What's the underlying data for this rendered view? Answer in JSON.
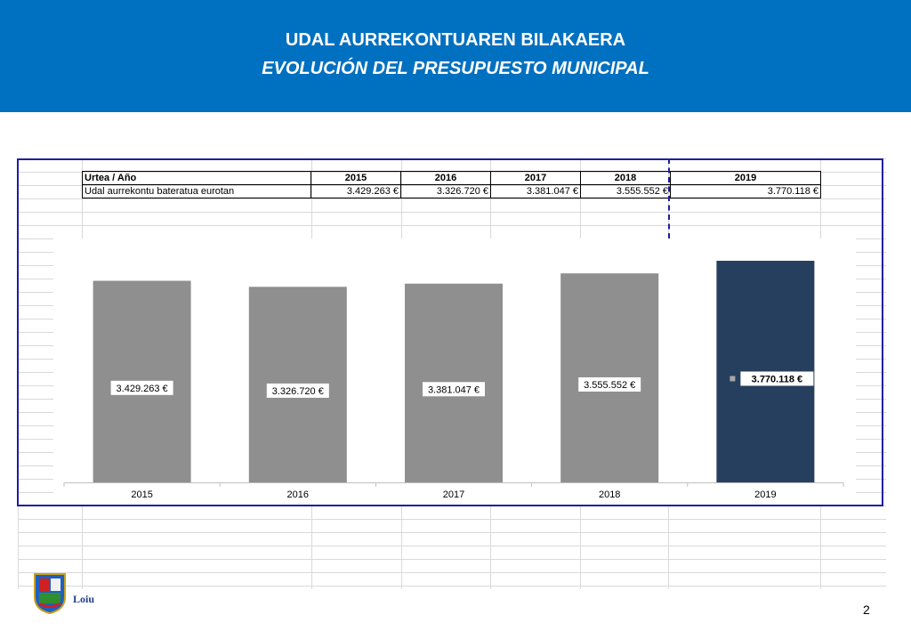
{
  "header": {
    "title": "UDAL AURREKONTUAREN BILAKAERA",
    "subtitle": "EVOLUCIÓN DEL PRESUPUESTO MUNICIPAL"
  },
  "table": {
    "header_label": "Urtea / Año",
    "row_label": "Udal aurrekontu bateratua eurotan",
    "years": [
      "2015",
      "2016",
      "2017",
      "2018",
      "2019"
    ],
    "values": [
      "3.429.263 €",
      "3.326.720 €",
      "3.381.047 €",
      "3.555.552 €",
      "3.770.118 €"
    ]
  },
  "chart_data": {
    "type": "bar",
    "categories": [
      "2015",
      "2016",
      "2017",
      "2018",
      "2019"
    ],
    "values": [
      3429263,
      3326720,
      3381047,
      3555552,
      3770118
    ],
    "data_labels": [
      "3.429.263 €",
      "3.326.720 €",
      "3.381.047 €",
      "3.555.552 €",
      "3.770.118 €"
    ],
    "colors": [
      "#8f8f8f",
      "#8f8f8f",
      "#8f8f8f",
      "#8f8f8f",
      "#263f5e"
    ],
    "highlight_index": 4,
    "title": "",
    "xlabel": "",
    "ylabel": "",
    "ylim": [
      0,
      3770118
    ],
    "grid": false,
    "legend": "none"
  },
  "footer": {
    "logo_text": "Loiu",
    "page_number": "2"
  }
}
